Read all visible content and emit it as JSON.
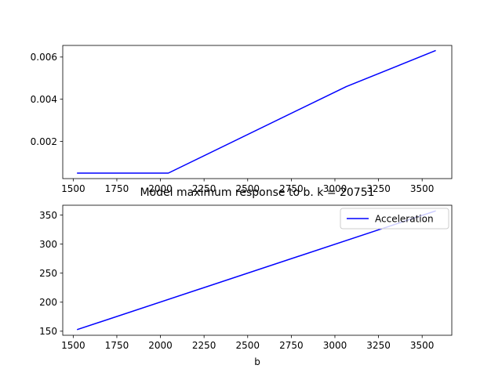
{
  "chart_data": [
    {
      "type": "line",
      "title": "",
      "xlabel": "",
      "ylabel": "",
      "xlim": [
        1440,
        3670
      ],
      "ylim": [
        0.00024,
        0.00655
      ],
      "xticks": [
        1500,
        1750,
        2000,
        2250,
        2500,
        2750,
        3000,
        3250,
        3500
      ],
      "xtick_labels": [
        "1500",
        "1750",
        "2000",
        "2250",
        "2500",
        "2750",
        "3000",
        "3250",
        "3500"
      ],
      "yticks": [
        0.002,
        0.004,
        0.006
      ],
      "ytick_labels": [
        "0.002",
        "0.004",
        "0.006"
      ],
      "grid": false,
      "legend": null,
      "series": [
        {
          "color": "#0000ff",
          "x": [
            1525,
            2045,
            3065,
            3575
          ],
          "y": [
            0.0005,
            0.0005,
            0.0046,
            0.0063
          ]
        }
      ]
    },
    {
      "type": "line",
      "title": "Model maximum response to b. k = 20751",
      "xlabel": "b",
      "ylabel": "",
      "xlim": [
        1440,
        3670
      ],
      "ylim": [
        143,
        367
      ],
      "xticks": [
        1500,
        1750,
        2000,
        2250,
        2500,
        2750,
        3000,
        3250,
        3500
      ],
      "xtick_labels": [
        "1500",
        "1750",
        "2000",
        "2250",
        "2500",
        "2750",
        "3000",
        "3250",
        "3500"
      ],
      "yticks": [
        150,
        200,
        250,
        300,
        350
      ],
      "ytick_labels": [
        "150",
        "200",
        "250",
        "300",
        "350"
      ],
      "grid": false,
      "legend": "upper right",
      "series": [
        {
          "name": "Acceleration",
          "color": "#0000ff",
          "x": [
            1525,
            3575
          ],
          "y": [
            153,
            357
          ]
        }
      ]
    }
  ]
}
